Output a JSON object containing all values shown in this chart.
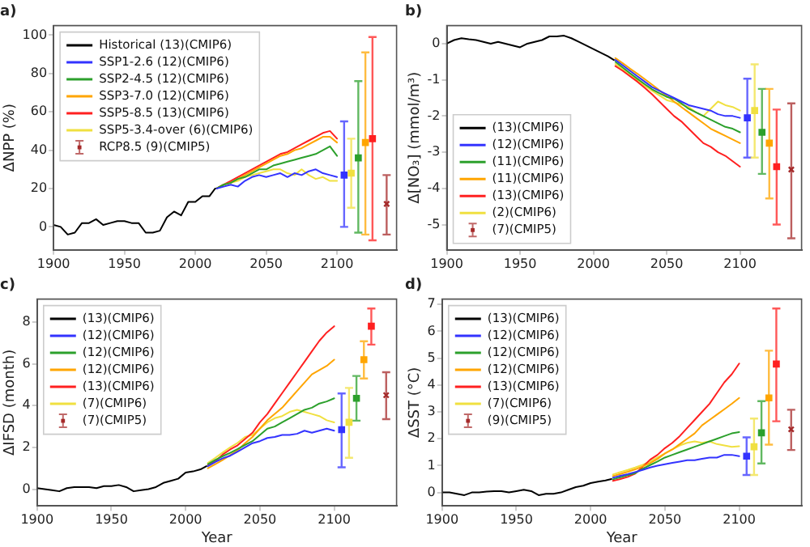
{
  "chart_data": [
    {
      "type": "line",
      "title": "a)",
      "ylabel": "ΔNPP (%)",
      "xlim": [
        1900,
        2142
      ],
      "xticks": [
        1900,
        1950,
        2000,
        2050,
        2100
      ],
      "ylim": [
        -12,
        105
      ],
      "yticks": [
        0,
        20,
        40,
        60,
        80,
        100
      ],
      "grid": false,
      "legend": "top left",
      "marker": "none",
      "series": [
        {
          "name": "Historical (13)(CMIP6)",
          "color": "#000000",
          "x": [
            1900,
            1905,
            1910,
            1915,
            1920,
            1925,
            1930,
            1935,
            1940,
            1945,
            1950,
            1955,
            1960,
            1965,
            1970,
            1975,
            1980,
            1985,
            1990,
            1995,
            2000,
            2005,
            2010,
            2014
          ],
          "values": [
            1,
            0,
            -4,
            -3,
            2,
            2,
            4,
            1,
            2,
            3,
            3,
            2,
            2,
            -3,
            -3,
            -2,
            5,
            8,
            6,
            13,
            13,
            16,
            16,
            20
          ]
        },
        {
          "name": "SSP1-2.6 (12)(CMIP6)",
          "color": "#3333ff",
          "x": [
            2015,
            2020,
            2025,
            2030,
            2035,
            2040,
            2045,
            2050,
            2055,
            2060,
            2065,
            2070,
            2075,
            2080,
            2085,
            2090,
            2095,
            2100
          ],
          "values": [
            20,
            21,
            22,
            21,
            24,
            26,
            27,
            26,
            27,
            28,
            26,
            28,
            27,
            29,
            30,
            28,
            27,
            26
          ]
        },
        {
          "name": "SSP2-4.5 (12)(CMIP6)",
          "color": "#2ca02c",
          "x": [
            2015,
            2020,
            2025,
            2030,
            2035,
            2040,
            2045,
            2050,
            2055,
            2060,
            2065,
            2070,
            2075,
            2080,
            2085,
            2090,
            2095,
            2100
          ],
          "values": [
            20,
            22,
            23,
            25,
            26,
            28,
            30,
            30,
            32,
            33,
            34,
            35,
            36,
            37,
            38,
            40,
            42,
            37
          ]
        },
        {
          "name": "SSP3-7.0 (12)(CMIP6)",
          "color": "#ffa500",
          "x": [
            2015,
            2020,
            2025,
            2030,
            2035,
            2040,
            2045,
            2050,
            2055,
            2060,
            2065,
            2070,
            2075,
            2080,
            2085,
            2090,
            2095,
            2100
          ],
          "values": [
            20,
            22,
            23,
            25,
            27,
            29,
            31,
            33,
            35,
            37,
            38,
            40,
            41,
            43,
            45,
            47,
            47,
            44
          ]
        },
        {
          "name": "SSP5-8.5 (13)(CMIP6)",
          "color": "#ff2020",
          "x": [
            2015,
            2020,
            2025,
            2030,
            2035,
            2040,
            2045,
            2050,
            2055,
            2060,
            2065,
            2070,
            2075,
            2080,
            2085,
            2090,
            2095,
            2100
          ],
          "values": [
            20,
            22,
            24,
            26,
            28,
            30,
            32,
            34,
            36,
            38,
            39,
            41,
            43,
            45,
            47,
            49,
            50,
            46
          ]
        },
        {
          "name": "SSP5-3.4-over (6)(CMIP6)",
          "color": "#f0e040",
          "x": [
            2015,
            2020,
            2025,
            2030,
            2035,
            2040,
            2045,
            2050,
            2055,
            2060,
            2065,
            2070,
            2075,
            2080,
            2085,
            2090,
            2095,
            2100
          ],
          "values": [
            20,
            22,
            23,
            24,
            26,
            27,
            28,
            29,
            30,
            30,
            28,
            27,
            30,
            27,
            25,
            26,
            24,
            24
          ]
        },
        {
          "type": "scatter",
          "marker": "square",
          "x": [
            2105,
            2110,
            2115,
            2120,
            2125
          ],
          "values": [
            27,
            28,
            36,
            44,
            46
          ],
          "colors": [
            "#3333ff",
            "#f0e040",
            "#2ca02c",
            "#ffa500",
            "#ff2020"
          ],
          "errors": [
            [
              0,
              55
            ],
            [
              10,
              46
            ],
            [
              -3,
              76
            ],
            [
              -4,
              91
            ],
            [
              -7,
              99
            ]
          ]
        },
        {
          "type": "scatter",
          "marker": "cross",
          "name": "RCP8.5 (9)(CMIP5)",
          "color": "#a52a2a",
          "x": [
            2135
          ],
          "values": [
            12
          ],
          "errors": [
            [
              -4,
              27
            ]
          ]
        }
      ]
    },
    {
      "type": "line",
      "title": "b)",
      "ylabel": "Δ[NO₃] (mmol/m³)",
      "xlim": [
        1900,
        2142
      ],
      "xticks": [
        1900,
        1950,
        2000,
        2050,
        2100
      ],
      "ylim": [
        -5.7,
        0.5
      ],
      "yticks": [
        -5,
        -4,
        -3,
        -2,
        -1,
        0
      ],
      "grid": false,
      "legend": "bottom left",
      "marker": "none",
      "series": [
        {
          "name": "(13)(CMIP6)",
          "color": "#000000",
          "x": [
            1900,
            1905,
            1910,
            1915,
            1920,
            1925,
            1930,
            1935,
            1940,
            1945,
            1950,
            1955,
            1960,
            1965,
            1970,
            1975,
            1980,
            1985,
            1990,
            1995,
            2000,
            2005,
            2010,
            2014
          ],
          "values": [
            0,
            0.1,
            0.15,
            0.12,
            0.1,
            0.05,
            0,
            0.05,
            0,
            -0.05,
            -0.1,
            0,
            0.05,
            0.1,
            0.2,
            0.2,
            0.22,
            0.15,
            0.05,
            -0.05,
            -0.15,
            -0.25,
            -0.35,
            -0.45
          ]
        },
        {
          "name": "(12)(CMIP6)",
          "color": "#3333ff",
          "x": [
            2015,
            2020,
            2025,
            2030,
            2035,
            2040,
            2045,
            2050,
            2055,
            2060,
            2065,
            2070,
            2075,
            2080,
            2085,
            2090,
            2095,
            2100
          ],
          "values": [
            -0.45,
            -0.6,
            -0.75,
            -0.9,
            -1.05,
            -1.2,
            -1.3,
            -1.4,
            -1.5,
            -1.6,
            -1.7,
            -1.75,
            -1.8,
            -1.85,
            -1.95,
            -2,
            -2,
            -2.05
          ]
        },
        {
          "name": "(11)(CMIP6)",
          "color": "#2ca02c",
          "x": [
            2015,
            2020,
            2025,
            2030,
            2035,
            2040,
            2045,
            2050,
            2055,
            2060,
            2065,
            2070,
            2075,
            2080,
            2085,
            2090,
            2095,
            2100
          ],
          "values": [
            -0.5,
            -0.66,
            -0.82,
            -0.97,
            -1.12,
            -1.26,
            -1.37,
            -1.47,
            -1.52,
            -1.65,
            -1.8,
            -1.9,
            -2,
            -2.1,
            -2.2,
            -2.3,
            -2.35,
            -2.45
          ]
        },
        {
          "name": "(11)(CMIP6)",
          "color": "#ffa500",
          "x": [
            2015,
            2020,
            2025,
            2030,
            2035,
            2040,
            2045,
            2050,
            2055,
            2060,
            2065,
            2070,
            2075,
            2080,
            2085,
            2090,
            2095,
            2100
          ],
          "values": [
            -0.4,
            -0.54,
            -0.69,
            -0.83,
            -0.98,
            -1.13,
            -1.29,
            -1.44,
            -1.6,
            -1.75,
            -1.9,
            -2.05,
            -2.2,
            -2.35,
            -2.45,
            -2.55,
            -2.65,
            -2.75
          ]
        },
        {
          "name": "(13)(CMIP6)",
          "color": "#ff2020",
          "x": [
            2015,
            2020,
            2025,
            2030,
            2035,
            2040,
            2045,
            2050,
            2055,
            2060,
            2065,
            2070,
            2075,
            2080,
            2085,
            2090,
            2095,
            2100
          ],
          "values": [
            -0.62,
            -0.75,
            -0.9,
            -1.05,
            -1.22,
            -1.4,
            -1.6,
            -1.8,
            -2,
            -2.15,
            -2.35,
            -2.55,
            -2.75,
            -2.85,
            -3,
            -3.1,
            -3.25,
            -3.4
          ]
        },
        {
          "name": "(2)(CMIP6)",
          "color": "#f0e040",
          "x": [
            2015,
            2020,
            2025,
            2030,
            2035,
            2040,
            2045,
            2050,
            2055,
            2060,
            2065,
            2070,
            2075,
            2080,
            2085,
            2090,
            2095,
            2100
          ],
          "values": [
            -0.56,
            -0.72,
            -0.88,
            -1.02,
            -1.16,
            -1.3,
            -1.43,
            -1.56,
            -1.62,
            -1.68,
            -1.75,
            -1.9,
            -2,
            -1.8,
            -1.6,
            -1.7,
            -1.75,
            -1.85
          ]
        },
        {
          "type": "scatter",
          "marker": "square",
          "x": [
            2105,
            2110,
            2115,
            2120,
            2125
          ],
          "values": [
            -2.05,
            -1.85,
            -2.45,
            -2.75,
            -3.4
          ],
          "colors": [
            "#3333ff",
            "#f0e040",
            "#2ca02c",
            "#ffa500",
            "#ff2020"
          ],
          "errors": [
            [
              -3.15,
              -0.97
            ],
            [
              -3.15,
              -0.57
            ],
            [
              -3.6,
              -1.25
            ],
            [
              -4.28,
              -1.25
            ],
            [
              -5,
              -1.82
            ]
          ]
        },
        {
          "type": "scatter",
          "marker": "cross",
          "name": "(7)(CMIP5)",
          "color": "#a52a2a",
          "x": [
            2135
          ],
          "values": [
            -3.48
          ],
          "errors": [
            [
              -5.38,
              -1.65
            ]
          ]
        }
      ]
    },
    {
      "type": "line",
      "title": "c)",
      "xlabel": "Year",
      "ylabel": "ΔIFSD (month)",
      "xlim": [
        1900,
        2142
      ],
      "xticks": [
        1900,
        1950,
        2000,
        2050,
        2100
      ],
      "ylim": [
        -0.8,
        9.1
      ],
      "yticks": [
        0,
        2,
        4,
        6,
        8
      ],
      "grid": false,
      "legend": "top left",
      "marker": "none",
      "series": [
        {
          "name": "(13)(CMIP6)",
          "color": "#000000",
          "x": [
            1900,
            1905,
            1910,
            1915,
            1920,
            1925,
            1930,
            1935,
            1940,
            1945,
            1950,
            1955,
            1960,
            1965,
            1970,
            1975,
            1980,
            1985,
            1990,
            1995,
            2000,
            2005,
            2010,
            2014
          ],
          "values": [
            0.05,
            0,
            -0.05,
            -0.1,
            0.05,
            0.1,
            0.1,
            0.1,
            0.05,
            0.15,
            0.15,
            0.2,
            0.1,
            -0.1,
            -0.05,
            0,
            0.1,
            0.3,
            0.4,
            0.5,
            0.8,
            0.85,
            0.95,
            1.1
          ]
        },
        {
          "name": "(12)(CMIP6)",
          "color": "#3333ff",
          "x": [
            2015,
            2020,
            2025,
            2030,
            2035,
            2040,
            2045,
            2050,
            2055,
            2060,
            2065,
            2070,
            2075,
            2080,
            2085,
            2090,
            2095,
            2100
          ],
          "values": [
            1.1,
            1.3,
            1.48,
            1.6,
            1.8,
            2,
            2.2,
            2.3,
            2.45,
            2.5,
            2.6,
            2.6,
            2.65,
            2.8,
            2.7,
            2.8,
            2.9,
            2.8
          ]
        },
        {
          "name": "(12)(CMIP6)",
          "color": "#2ca02c",
          "x": [
            2015,
            2020,
            2025,
            2030,
            2035,
            2040,
            2045,
            2050,
            2055,
            2060,
            2065,
            2070,
            2075,
            2080,
            2085,
            2090,
            2095,
            2100
          ],
          "values": [
            1.2,
            1.4,
            1.58,
            1.74,
            1.92,
            2.12,
            2.3,
            2.6,
            2.9,
            3,
            3.2,
            3.4,
            3.6,
            3.8,
            3.9,
            4.1,
            4.2,
            4.35
          ]
        },
        {
          "name": "(12)(CMIP6)",
          "color": "#ffa500",
          "x": [
            2015,
            2020,
            2025,
            2030,
            2035,
            2040,
            2045,
            2050,
            2055,
            2060,
            2065,
            2070,
            2075,
            2080,
            2085,
            2090,
            2095,
            2100
          ],
          "values": [
            1,
            1.2,
            1.4,
            1.63,
            1.86,
            2.2,
            2.5,
            2.9,
            3.3,
            3.6,
            3.9,
            4.3,
            4.7,
            5.1,
            5.5,
            5.7,
            5.9,
            6.2
          ]
        },
        {
          "name": "(13)(CMIP6)",
          "color": "#ff2020",
          "x": [
            2015,
            2020,
            2025,
            2030,
            2035,
            2040,
            2045,
            2050,
            2055,
            2060,
            2065,
            2070,
            2075,
            2080,
            2085,
            2090,
            2095,
            2100
          ],
          "values": [
            1.14,
            1.34,
            1.66,
            1.9,
            2.1,
            2.4,
            2.7,
            3.2,
            3.6,
            4.1,
            4.6,
            5.1,
            5.6,
            6.1,
            6.6,
            7.1,
            7.5,
            7.8
          ]
        },
        {
          "name": "(7)(CMIP6)",
          "color": "#f0e040",
          "x": [
            2015,
            2020,
            2025,
            2030,
            2035,
            2040,
            2045,
            2050,
            2055,
            2060,
            2065,
            2070,
            2075,
            2080,
            2085,
            2090,
            2095,
            2100
          ],
          "values": [
            1.26,
            1.5,
            1.76,
            2,
            2.22,
            2.5,
            2.6,
            2.9,
            3.2,
            3.4,
            3.5,
            3.7,
            3.8,
            3.7,
            3.6,
            3.5,
            3.3,
            3.2
          ]
        },
        {
          "type": "scatter",
          "marker": "square",
          "x": [
            2105,
            2110,
            2115,
            2120,
            2125
          ],
          "values": [
            2.85,
            3.2,
            4.35,
            6.2,
            7.8
          ],
          "colors": [
            "#3333ff",
            "#f0e040",
            "#2ca02c",
            "#ffa500",
            "#ff2020"
          ],
          "errors": [
            [
              1.05,
              4.58
            ],
            [
              1.5,
              4.85
            ],
            [
              3.28,
              5.42
            ],
            [
              5.3,
              7.08
            ],
            [
              6.92,
              8.65
            ]
          ]
        },
        {
          "type": "scatter",
          "marker": "cross",
          "name": "(7)(CMIP5)",
          "color": "#a52a2a",
          "x": [
            2135
          ],
          "values": [
            4.5
          ],
          "errors": [
            [
              3.35,
              5.6
            ]
          ]
        }
      ]
    },
    {
      "type": "line",
      "title": "d)",
      "xlabel": "Year",
      "ylabel": "ΔSST (°C)",
      "xlim": [
        1900,
        2142
      ],
      "xticks": [
        1900,
        1950,
        2000,
        2050,
        2100
      ],
      "ylim": [
        -0.5,
        7.2
      ],
      "yticks": [
        0,
        1,
        2,
        3,
        4,
        5,
        6,
        7
      ],
      "grid": false,
      "legend": "top left",
      "marker": "none",
      "series": [
        {
          "name": "(13)(CMIP6)",
          "color": "#000000",
          "x": [
            1900,
            1905,
            1910,
            1915,
            1920,
            1925,
            1930,
            1935,
            1940,
            1945,
            1950,
            1955,
            1960,
            1965,
            1970,
            1975,
            1980,
            1985,
            1990,
            1995,
            2000,
            2005,
            2010,
            2014
          ],
          "values": [
            0,
            0,
            -0.05,
            -0.1,
            0,
            0,
            0.03,
            0.05,
            0.05,
            0,
            0.05,
            0.1,
            0.05,
            -0.1,
            -0.05,
            -0.05,
            0,
            0.1,
            0.2,
            0.25,
            0.35,
            0.4,
            0.45,
            0.5
          ]
        },
        {
          "name": "(12)(CMIP6)",
          "color": "#3333ff",
          "x": [
            2015,
            2020,
            2025,
            2030,
            2035,
            2040,
            2045,
            2050,
            2055,
            2060,
            2065,
            2070,
            2075,
            2080,
            2085,
            2090,
            2095,
            2100
          ],
          "values": [
            0.55,
            0.62,
            0.68,
            0.76,
            0.84,
            0.93,
            1,
            1.05,
            1.1,
            1.15,
            1.2,
            1.2,
            1.25,
            1.3,
            1.3,
            1.4,
            1.4,
            1.35
          ]
        },
        {
          "name": "(12)(CMIP6)",
          "color": "#2ca02c",
          "x": [
            2015,
            2020,
            2025,
            2030,
            2035,
            2040,
            2045,
            2050,
            2055,
            2060,
            2065,
            2070,
            2075,
            2080,
            2085,
            2090,
            2095,
            2100
          ],
          "values": [
            0.49,
            0.57,
            0.64,
            0.72,
            0.88,
            1.02,
            1.15,
            1.3,
            1.4,
            1.5,
            1.6,
            1.7,
            1.8,
            1.9,
            2,
            2.1,
            2.2,
            2.25
          ]
        },
        {
          "name": "(12)(CMIP6)",
          "color": "#ffa500",
          "x": [
            2015,
            2020,
            2025,
            2030,
            2035,
            2040,
            2045,
            2050,
            2055,
            2060,
            2065,
            2070,
            2075,
            2080,
            2085,
            2090,
            2095,
            2100
          ],
          "values": [
            0.61,
            0.69,
            0.77,
            0.86,
            0.97,
            1.09,
            1.25,
            1.45,
            1.6,
            1.8,
            2,
            2.2,
            2.5,
            2.7,
            2.9,
            3.1,
            3.3,
            3.52
          ]
        },
        {
          "name": "(13)(CMIP6)",
          "color": "#ff2020",
          "x": [
            2015,
            2020,
            2025,
            2030,
            2035,
            2040,
            2045,
            2050,
            2055,
            2060,
            2065,
            2070,
            2075,
            2080,
            2085,
            2090,
            2095,
            2100
          ],
          "values": [
            0.43,
            0.5,
            0.58,
            0.7,
            0.95,
            1.22,
            1.4,
            1.65,
            1.85,
            2.1,
            2.4,
            2.7,
            3,
            3.3,
            3.7,
            4.1,
            4.4,
            4.8
          ]
        },
        {
          "name": "(7)(CMIP6)",
          "color": "#f0e040",
          "x": [
            2015,
            2020,
            2025,
            2030,
            2035,
            2040,
            2045,
            2050,
            2055,
            2060,
            2065,
            2070,
            2075,
            2080,
            2085,
            2090,
            2095,
            2100
          ],
          "values": [
            0.67,
            0.76,
            0.84,
            0.93,
            1.03,
            1.15,
            1.3,
            1.45,
            1.6,
            1.75,
            1.85,
            1.9,
            1.85,
            1.9,
            1.8,
            1.75,
            1.7,
            1.72
          ]
        },
        {
          "type": "scatter",
          "marker": "square",
          "x": [
            2105,
            2110,
            2115,
            2120,
            2125
          ],
          "values": [
            1.35,
            1.7,
            2.22,
            3.52,
            4.78
          ],
          "colors": [
            "#3333ff",
            "#f0e040",
            "#2ca02c",
            "#ffa500",
            "#ff2020"
          ],
          "errors": [
            [
              0.65,
              2.05
            ],
            [
              0.65,
              2.75
            ],
            [
              1.08,
              3.4
            ],
            [
              1.78,
              5.28
            ],
            [
              2.65,
              6.85
            ]
          ]
        },
        {
          "type": "scatter",
          "marker": "cross",
          "name": "(9)(CMIP5)",
          "color": "#a52a2a",
          "x": [
            2135
          ],
          "values": [
            2.35
          ],
          "errors": [
            [
              1.58,
              3.08
            ]
          ]
        }
      ]
    }
  ]
}
